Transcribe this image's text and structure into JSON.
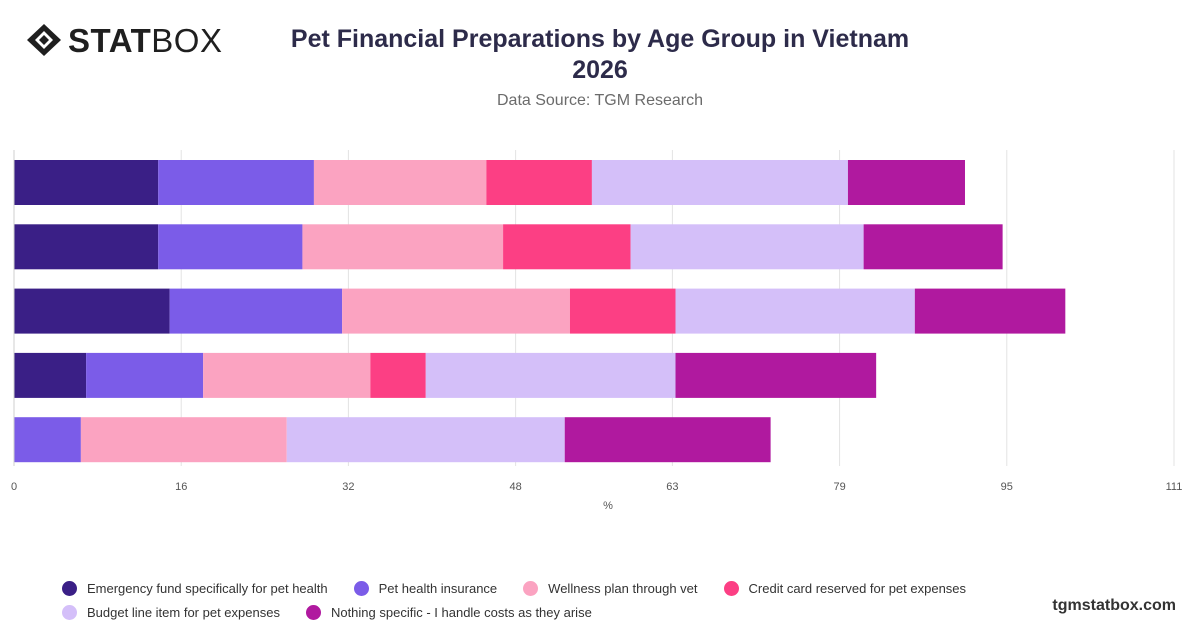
{
  "brand": {
    "name_bold": "STAT",
    "name_light": "BOX",
    "footer": "tgmstatbox.com"
  },
  "header": {
    "title_line1": "Pet Financial Preparations by Age Group in Vietnam",
    "title_line2": "2026",
    "subtitle": "Data Source: TGM Research"
  },
  "chart_data": {
    "type": "bar",
    "orientation": "horizontal",
    "stacked": true,
    "categories": [
      "",
      "",
      "",
      "",
      ""
    ],
    "xlabel": "%",
    "ylabel": "",
    "xlim": [
      0,
      111
    ],
    "x_ticks": [
      "0",
      "16",
      "32",
      "48",
      "63",
      "79",
      "95",
      "111"
    ],
    "grid": true,
    "legend_position": "bottom",
    "series": [
      {
        "name": "Emergency fund specifically for pet health",
        "color": "#3a1f86",
        "values": [
          13.8,
          13.8,
          14.9,
          6.9,
          0
        ]
      },
      {
        "name": "Pet health insurance",
        "color": "#7b5ce8",
        "values": [
          14.9,
          13.8,
          16.5,
          11.2,
          6.4
        ]
      },
      {
        "name": "Wellness plan through vet",
        "color": "#fba3c1",
        "values": [
          16.5,
          19.2,
          21.8,
          16.0,
          19.7
        ]
      },
      {
        "name": "Credit card reserved for pet expenses",
        "color": "#fc3f84",
        "values": [
          10.1,
          12.2,
          10.1,
          5.3,
          0
        ]
      },
      {
        "name": "Budget line item for pet expenses",
        "color": "#d4bff9",
        "values": [
          24.5,
          22.3,
          22.9,
          23.9,
          26.6
        ]
      },
      {
        "name": "Nothing specific - I handle costs as they arise",
        "color": "#b0199f",
        "values": [
          11.2,
          13.3,
          14.4,
          19.2,
          19.7
        ]
      }
    ]
  }
}
